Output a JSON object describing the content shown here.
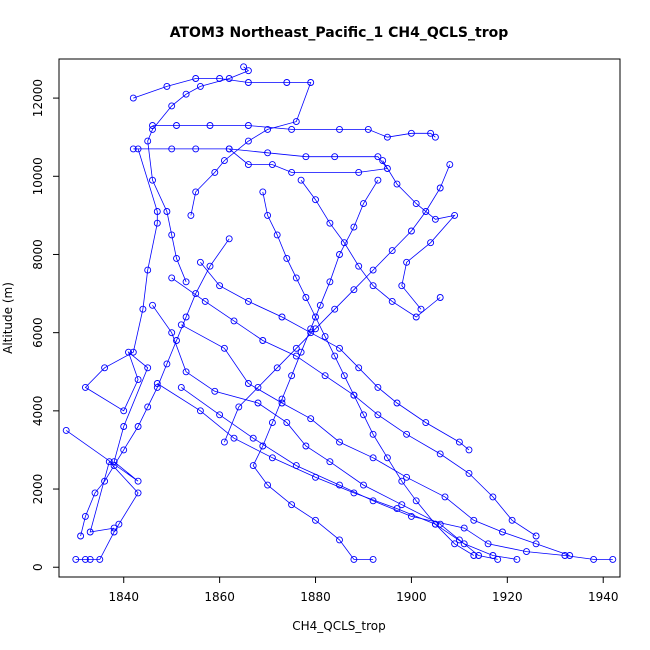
{
  "chart_data": {
    "type": "line",
    "title": "ATOM3 Northeast_Pacific_1 CH4_QCLS_trop",
    "xlabel": "CH4_QCLS_trop",
    "ylabel": "Altitude (m)",
    "xlim": [
      1826.5,
      1943.5
    ],
    "ylim": [
      -250,
      13000
    ],
    "x_ticks": [
      1840,
      1860,
      1880,
      1900,
      1920,
      1940
    ],
    "y_ticks": [
      0,
      2000,
      4000,
      6000,
      8000,
      10000,
      12000
    ],
    "grid": false,
    "marker": "open-circle",
    "colors": {
      "series": "#0000ff",
      "axis": "#000000"
    },
    "series": [
      {
        "points": [
          [
            1830,
            200
          ],
          [
            1832,
            200
          ],
          [
            1833,
            200
          ],
          [
            1835,
            200
          ],
          [
            1838,
            900
          ],
          [
            1839,
            1100
          ],
          [
            1843,
            1900
          ],
          [
            1837,
            2700
          ],
          [
            1833,
            900
          ],
          [
            1838,
            1000
          ]
        ]
      },
      {
        "points": [
          [
            1828,
            3500
          ],
          [
            1843,
            2200
          ],
          [
            1838,
            2700
          ],
          [
            1840,
            3600
          ],
          [
            1845,
            5100
          ],
          [
            1841,
            5500
          ],
          [
            1843,
            4800
          ],
          [
            1840,
            4000
          ],
          [
            1832,
            4600
          ],
          [
            1836,
            5100
          ],
          [
            1842,
            5500
          ],
          [
            1844,
            6600
          ],
          [
            1845,
            7600
          ],
          [
            1847,
            8800
          ],
          [
            1847,
            9100
          ],
          [
            1843,
            10700
          ]
        ]
      },
      {
        "points": [
          [
            1842,
            10700
          ],
          [
            1850,
            10700
          ],
          [
            1862,
            10700
          ],
          [
            1870,
            10600
          ],
          [
            1878,
            10500
          ],
          [
            1884,
            10500
          ],
          [
            1893,
            10500
          ],
          [
            1895,
            10200
          ],
          [
            1889,
            10100
          ],
          [
            1875,
            10100
          ],
          [
            1871,
            10300
          ],
          [
            1866,
            10300
          ],
          [
            1862,
            10700
          ],
          [
            1855,
            10700
          ]
        ]
      },
      {
        "points": [
          [
            1842,
            12000
          ],
          [
            1849,
            12300
          ],
          [
            1855,
            12500
          ],
          [
            1860,
            12500
          ],
          [
            1866,
            12400
          ],
          [
            1874,
            12400
          ],
          [
            1879,
            12400
          ],
          [
            1876,
            11400
          ],
          [
            1870,
            11200
          ],
          [
            1866,
            10900
          ],
          [
            1861,
            10400
          ],
          [
            1859,
            10100
          ],
          [
            1855,
            9600
          ],
          [
            1854,
            9000
          ]
        ]
      },
      {
        "points": [
          [
            1846,
            11300
          ],
          [
            1851,
            11300
          ],
          [
            1858,
            11300
          ],
          [
            1866,
            11300
          ],
          [
            1875,
            11200
          ],
          [
            1885,
            11200
          ],
          [
            1891,
            11200
          ],
          [
            1895,
            11000
          ],
          [
            1900,
            11100
          ],
          [
            1904,
            11100
          ],
          [
            1905,
            11000
          ]
        ]
      },
      {
        "points": [
          [
            1865,
            12800
          ],
          [
            1866,
            12700
          ],
          [
            1862,
            12500
          ],
          [
            1856,
            12300
          ],
          [
            1853,
            12100
          ],
          [
            1850,
            11800
          ],
          [
            1846,
            11200
          ],
          [
            1845,
            10900
          ],
          [
            1846,
            9900
          ],
          [
            1849,
            9100
          ],
          [
            1850,
            8500
          ],
          [
            1851,
            7900
          ],
          [
            1853,
            7300
          ]
        ]
      },
      {
        "points": [
          [
            1846,
            6700
          ],
          [
            1850,
            6000
          ],
          [
            1853,
            5000
          ],
          [
            1859,
            4500
          ],
          [
            1868,
            4200
          ],
          [
            1874,
            3700
          ],
          [
            1878,
            3100
          ],
          [
            1883,
            2700
          ],
          [
            1890,
            2100
          ],
          [
            1898,
            1600
          ],
          [
            1906,
            1100
          ],
          [
            1910,
            700
          ],
          [
            1914,
            300
          ],
          [
            1918,
            200
          ]
        ]
      },
      {
        "points": [
          [
            1847,
            4700
          ],
          [
            1856,
            4000
          ],
          [
            1863,
            3300
          ],
          [
            1871,
            2800
          ],
          [
            1880,
            2300
          ],
          [
            1888,
            1900
          ],
          [
            1897,
            1500
          ],
          [
            1905,
            1100
          ],
          [
            1911,
            600
          ],
          [
            1917,
            300
          ],
          [
            1922,
            200
          ]
        ]
      },
      {
        "points": [
          [
            1852,
            4600
          ],
          [
            1860,
            3900
          ],
          [
            1867,
            3300
          ],
          [
            1876,
            2600
          ],
          [
            1885,
            2100
          ],
          [
            1892,
            1700
          ],
          [
            1900,
            1300
          ],
          [
            1911,
            1000
          ],
          [
            1916,
            600
          ],
          [
            1924,
            400
          ],
          [
            1932,
            300
          ],
          [
            1938,
            200
          ],
          [
            1942,
            200
          ]
        ]
      },
      {
        "points": [
          [
            1852,
            6200
          ],
          [
            1861,
            5600
          ],
          [
            1866,
            4700
          ],
          [
            1873,
            4200
          ],
          [
            1879,
            3800
          ],
          [
            1885,
            3200
          ],
          [
            1892,
            2800
          ],
          [
            1899,
            2300
          ],
          [
            1907,
            1800
          ],
          [
            1913,
            1200
          ],
          [
            1919,
            900
          ],
          [
            1926,
            600
          ],
          [
            1933,
            300
          ]
        ]
      },
      {
        "points": [
          [
            1850,
            7400
          ],
          [
            1857,
            6800
          ],
          [
            1863,
            6300
          ],
          [
            1869,
            5800
          ],
          [
            1876,
            5400
          ],
          [
            1882,
            4900
          ],
          [
            1888,
            4400
          ],
          [
            1893,
            3900
          ],
          [
            1899,
            3400
          ],
          [
            1906,
            2900
          ],
          [
            1912,
            2400
          ],
          [
            1917,
            1800
          ],
          [
            1921,
            1200
          ],
          [
            1926,
            800
          ]
        ]
      },
      {
        "points": [
          [
            1856,
            7800
          ],
          [
            1860,
            7200
          ],
          [
            1866,
            6800
          ],
          [
            1873,
            6400
          ],
          [
            1879,
            6000
          ],
          [
            1885,
            5600
          ],
          [
            1889,
            5100
          ],
          [
            1893,
            4600
          ],
          [
            1897,
            4200
          ],
          [
            1903,
            3700
          ],
          [
            1910,
            3200
          ],
          [
            1912,
            3000
          ]
        ]
      },
      {
        "points": [
          [
            1869,
            9600
          ],
          [
            1870,
            9000
          ],
          [
            1872,
            8500
          ],
          [
            1874,
            7900
          ],
          [
            1876,
            7400
          ],
          [
            1878,
            6900
          ],
          [
            1880,
            6400
          ],
          [
            1882,
            5900
          ],
          [
            1884,
            5400
          ],
          [
            1886,
            4900
          ],
          [
            1888,
            4400
          ],
          [
            1890,
            3900
          ],
          [
            1892,
            3400
          ],
          [
            1895,
            2800
          ],
          [
            1898,
            2200
          ],
          [
            1901,
            1700
          ],
          [
            1905,
            1100
          ],
          [
            1909,
            600
          ],
          [
            1913,
            300
          ]
        ]
      },
      {
        "points": [
          [
            1877,
            9900
          ],
          [
            1880,
            9400
          ],
          [
            1883,
            8800
          ],
          [
            1886,
            8300
          ],
          [
            1889,
            7700
          ],
          [
            1892,
            7200
          ],
          [
            1896,
            6800
          ],
          [
            1901,
            6400
          ],
          [
            1906,
            6900
          ]
        ]
      },
      {
        "points": [
          [
            1894,
            10400
          ],
          [
            1897,
            9800
          ],
          [
            1901,
            9300
          ],
          [
            1905,
            8900
          ],
          [
            1909,
            9000
          ],
          [
            1904,
            8300
          ],
          [
            1899,
            7800
          ],
          [
            1898,
            7200
          ],
          [
            1902,
            6600
          ]
        ]
      },
      {
        "points": [
          [
            1893,
            9900
          ],
          [
            1890,
            9300
          ],
          [
            1888,
            8700
          ],
          [
            1885,
            8000
          ],
          [
            1883,
            7300
          ],
          [
            1881,
            6700
          ],
          [
            1879,
            6100
          ],
          [
            1877,
            5500
          ],
          [
            1875,
            4900
          ],
          [
            1873,
            4300
          ],
          [
            1871,
            3700
          ],
          [
            1869,
            3100
          ],
          [
            1867,
            2600
          ],
          [
            1870,
            2100
          ],
          [
            1875,
            1600
          ],
          [
            1880,
            1200
          ],
          [
            1885,
            700
          ],
          [
            1888,
            200
          ],
          [
            1892,
            200
          ]
        ]
      },
      {
        "points": [
          [
            1908,
            10300
          ],
          [
            1906,
            9700
          ],
          [
            1903,
            9100
          ],
          [
            1900,
            8600
          ],
          [
            1896,
            8100
          ],
          [
            1892,
            7600
          ],
          [
            1888,
            7100
          ],
          [
            1884,
            6600
          ],
          [
            1880,
            6100
          ],
          [
            1876,
            5600
          ],
          [
            1872,
            5100
          ],
          [
            1868,
            4600
          ],
          [
            1864,
            4100
          ],
          [
            1861,
            3200
          ]
        ]
      },
      {
        "points": [
          [
            1862,
            8400
          ],
          [
            1858,
            7700
          ],
          [
            1855,
            7000
          ],
          [
            1853,
            6400
          ],
          [
            1851,
            5800
          ],
          [
            1849,
            5200
          ],
          [
            1847,
            4600
          ],
          [
            1845,
            4100
          ],
          [
            1843,
            3600
          ],
          [
            1840,
            3000
          ],
          [
            1838,
            2600
          ],
          [
            1836,
            2200
          ],
          [
            1834,
            1900
          ],
          [
            1832,
            1300
          ],
          [
            1831,
            800
          ]
        ]
      }
    ]
  }
}
